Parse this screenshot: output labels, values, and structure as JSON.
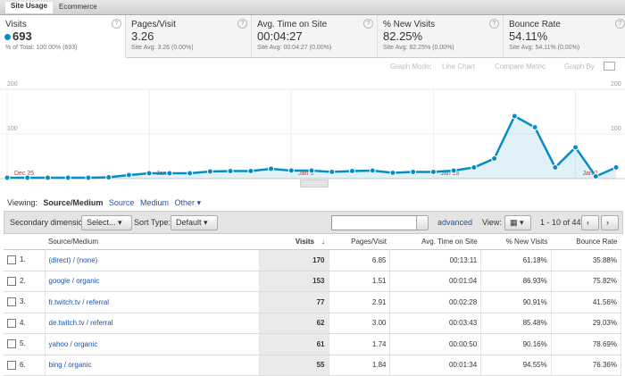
{
  "tabs": [
    "Site Usage",
    "Ecommerce"
  ],
  "metrics": [
    {
      "label": "Visits",
      "value": "693",
      "sub": "% of Total: 100.00% (693)"
    },
    {
      "label": "Pages/Visit",
      "value": "3.26",
      "sub": "Site Avg: 3.26 (0.00%)"
    },
    {
      "label": "Avg. Time on Site",
      "value": "00:04:27",
      "sub": "Site Avg: 00:04:27 (0.00%)"
    },
    {
      "label": "% New Visits",
      "value": "82.25%",
      "sub": "Site Avg: 82.25% (0.00%)"
    },
    {
      "label": "Bounce Rate",
      "value": "54.11%",
      "sub": "Site Avg: 54.11% (0.00%)"
    }
  ],
  "graph_options": [
    "Graph Mode:",
    "Line Chart",
    "Compare Metric",
    "Graph By"
  ],
  "chart_data": {
    "type": "line",
    "color": "#058dc7",
    "categories": [
      "Dec 25",
      null,
      null,
      null,
      null,
      null,
      null,
      "Jan 1",
      null,
      null,
      null,
      null,
      null,
      null,
      "Jan 8",
      null,
      null,
      null,
      null,
      null,
      null,
      "Jan 15",
      null,
      null,
      null,
      null,
      null,
      null,
      "Jan 2",
      null,
      null
    ],
    "values": [
      2,
      2,
      2,
      2,
      2,
      3,
      8,
      12,
      12,
      12,
      16,
      17,
      17,
      22,
      18,
      18,
      15,
      17,
      18,
      13,
      15,
      15,
      18,
      25,
      45,
      140,
      115,
      25,
      70,
      5,
      25
    ],
    "ylim": [
      0,
      200
    ],
    "yticks": [
      100,
      200
    ],
    "grid": true
  },
  "viewing": {
    "label": "Viewing:",
    "options": [
      "Source/Medium",
      "Source",
      "Medium",
      "Other"
    ]
  },
  "toolbar": {
    "secondary_label": "Secondary dimension:",
    "secondary_value": "Select...",
    "sort_label": "Sort Type:",
    "sort_value": "Default",
    "advanced": "advanced",
    "view_label": "View:",
    "pagination": "1 - 10 of 44"
  },
  "table": {
    "columns": [
      "Source/Medium",
      "Visits",
      "Pages/Visit",
      "Avg. Time on Site",
      "% New Visits",
      "Bounce Rate"
    ],
    "rows": [
      {
        "index": "1.",
        "cells": [
          "(direct) / (none)",
          "170",
          "6.85",
          "00:13:11",
          "61.18%",
          "35.88%"
        ]
      },
      {
        "index": "2.",
        "cells": [
          "google / organic",
          "153",
          "1.51",
          "00:01:04",
          "86.93%",
          "75.82%"
        ]
      },
      {
        "index": "3.",
        "cells": [
          "fr.twitch.tv / referral",
          "77",
          "2.91",
          "00:02:28",
          "90.91%",
          "41.56%"
        ]
      },
      {
        "index": "4.",
        "cells": [
          "de.twitch.tv / referral",
          "62",
          "3.00",
          "00:03:43",
          "85.48%",
          "29.03%"
        ]
      },
      {
        "index": "5.",
        "cells": [
          "yahoo / organic",
          "61",
          "1.74",
          "00:00:50",
          "90.16%",
          "78.69%"
        ]
      },
      {
        "index": "6.",
        "cells": [
          "bing / organic",
          "55",
          "1.84",
          "00:01:34",
          "94.55%",
          "76.36%"
        ]
      }
    ]
  }
}
